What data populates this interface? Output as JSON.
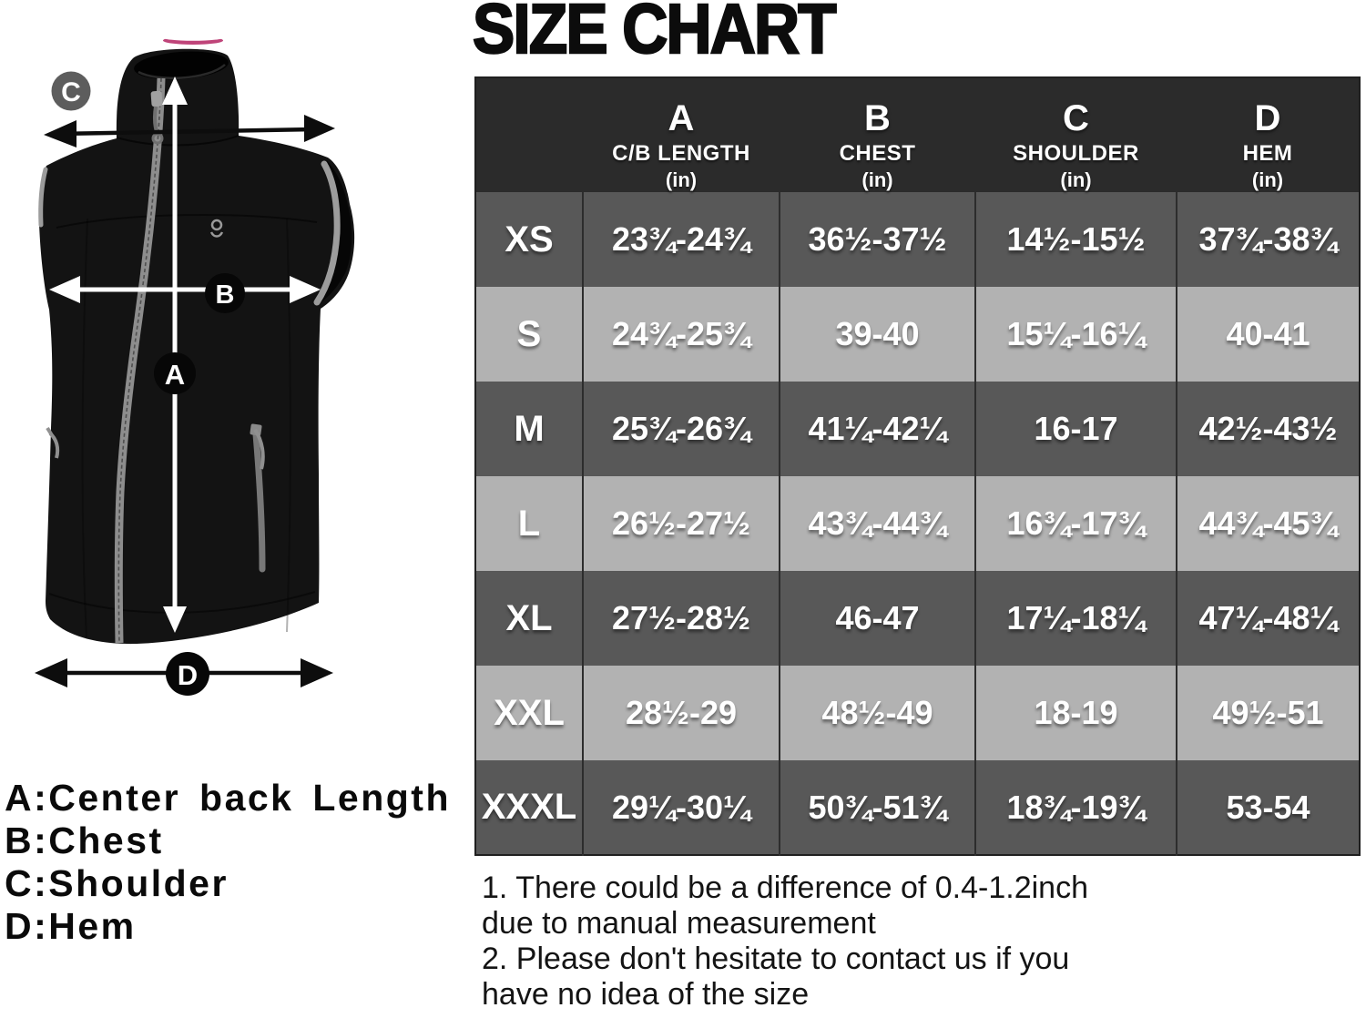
{
  "title": "SIZE CHART",
  "diagram": {
    "markers": {
      "a": "A",
      "b": "B",
      "c": "C",
      "d": "D"
    },
    "legend": [
      "A:Center back Length",
      "B:Chest",
      "C:Shoulder",
      "D:Hem"
    ]
  },
  "chart_data": {
    "type": "table",
    "title": "SIZE CHART",
    "columns": [
      {
        "letter": "",
        "name": "",
        "unit": ""
      },
      {
        "letter": "A",
        "name": "C/B LENGTH",
        "unit": "(in)"
      },
      {
        "letter": "B",
        "name": "CHEST",
        "unit": "(in)"
      },
      {
        "letter": "C",
        "name": "SHOULDER",
        "unit": "(in)"
      },
      {
        "letter": "D",
        "name": "HEM",
        "unit": "(in)"
      }
    ],
    "rows": [
      {
        "size": "XS",
        "shade": "dark",
        "values": [
          "23¾-24¾",
          "36½-37½",
          "14½-15½",
          "37¾-38¾"
        ]
      },
      {
        "size": "S",
        "shade": "light",
        "values": [
          "24¾-25¾",
          "39-40",
          "15¼-16¼",
          "40-41"
        ]
      },
      {
        "size": "M",
        "shade": "dark",
        "values": [
          "25¾-26¾",
          "41¼-42¼",
          "16-17",
          "42½-43½"
        ]
      },
      {
        "size": "L",
        "shade": "light",
        "values": [
          "26½-27½",
          "43¾-44¾",
          "16¾-17¾",
          "44¾-45¾"
        ]
      },
      {
        "size": "XL",
        "shade": "dark",
        "values": [
          "27½-28½",
          "46-47",
          "17¼-18¼",
          "47¼-48¼"
        ]
      },
      {
        "size": "XXL",
        "shade": "light",
        "values": [
          "28½-29",
          "48½-49",
          "18-19",
          "49½-51"
        ]
      },
      {
        "size": "XXXL",
        "shade": "dark",
        "values": [
          "29¼-30¼",
          "50¾-51¾",
          "18¾-19¾",
          "53-54"
        ]
      }
    ]
  },
  "notes_lines": [
    "1. There could be a difference of 0.4-1.2inch",
    "due to manual measurement",
    "2. Please don't hesitate to contact us if you",
    "have no idea of the size"
  ],
  "colors": {
    "header_bg": "#2b2b2b",
    "row_dark": "#585858",
    "row_light": "#b2b2b2",
    "table_text": "#ffffff",
    "accent_pink": "#bf4479",
    "vest_black": "#131313",
    "zipper_gray": "#8d8d8d"
  }
}
